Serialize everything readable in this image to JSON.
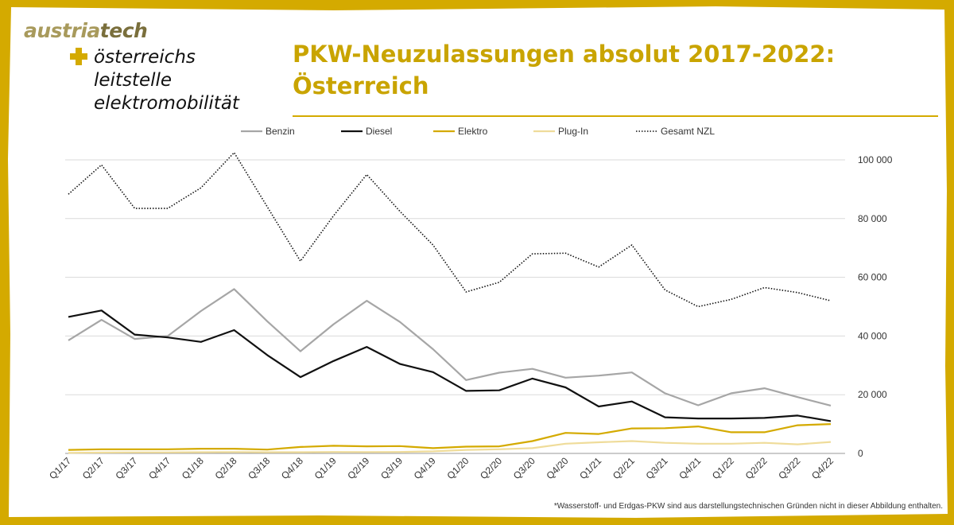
{
  "brand": {
    "name_part1": "austria",
    "name_part2": "tech"
  },
  "tagline": [
    "österreichs",
    "leitstelle",
    "elektromobilität"
  ],
  "header": {
    "title_line1": "PKW-Neuzulassungen absolut 2017-2022:",
    "title_line2": "Österreich"
  },
  "footnote": "*Wasserstoff- und Erdgas-PKW sind aus darstellungstechnischen Gründen nicht in dieser Abbildung enthalten.",
  "colors": {
    "frame": "#d4aa00",
    "accent": "#c9a400"
  },
  "chart_data": {
    "type": "line",
    "title": "PKW-Neuzulassungen absolut 2017-2022: Österreich",
    "categories": [
      "Q1/17",
      "Q2/17",
      "Q3/17",
      "Q4/17",
      "Q1/18",
      "Q2/18",
      "Q3/18",
      "Q4/18",
      "Q1/19",
      "Q2/19",
      "Q3/19",
      "Q4/19",
      "Q1/20",
      "Q2/20",
      "Q3/20",
      "Q4/20",
      "Q1/21",
      "Q2/21",
      "Q3/21",
      "Q4/21",
      "Q1/22",
      "Q2/22",
      "Q3/22",
      "Q4/22"
    ],
    "ylim": [
      0,
      100000
    ],
    "yticks": [
      0,
      20000,
      40000,
      60000,
      80000,
      100000
    ],
    "ytick_labels": [
      "0",
      "20 000",
      "40 000",
      "60 000",
      "80 000",
      "100 000"
    ],
    "y_axis_side": "right",
    "grid": true,
    "legend_position": "top",
    "series": [
      {
        "name": "Benzin",
        "color": "#a6a6a6",
        "dash": "solid",
        "values": [
          38500,
          45500,
          39000,
          40000,
          48500,
          56000,
          45000,
          34800,
          44000,
          52000,
          44800,
          35500,
          25000,
          27500,
          28800,
          25800,
          26500,
          27600,
          20500,
          16400,
          20500,
          22200,
          19200,
          16300
        ]
      },
      {
        "name": "Diesel",
        "color": "#111111",
        "dash": "solid",
        "values": [
          46500,
          48700,
          40500,
          39500,
          38000,
          42000,
          33500,
          26000,
          31500,
          36300,
          30500,
          27700,
          21300,
          21500,
          25500,
          22500,
          16000,
          17700,
          12300,
          11900,
          11900,
          12100,
          12900,
          11000
        ]
      },
      {
        "name": "Elektro",
        "color": "#d4aa00",
        "dash": "solid",
        "values": [
          1200,
          1400,
          1400,
          1400,
          1600,
          1600,
          1300,
          2200,
          2600,
          2400,
          2500,
          1800,
          2300,
          2400,
          4200,
          7000,
          6600,
          8500,
          8600,
          9200,
          7200,
          7200,
          9600,
          10000
        ]
      },
      {
        "name": "Plug-In",
        "color": "#efdc9a",
        "dash": "solid",
        "values": [
          200,
          300,
          350,
          350,
          400,
          450,
          400,
          400,
          500,
          450,
          500,
          700,
          1200,
          1400,
          1800,
          3300,
          3800,
          4200,
          3600,
          3300,
          3300,
          3600,
          3100,
          3900
        ]
      },
      {
        "name": "Gesamt NZL",
        "color": "#111111",
        "dash": "dotted",
        "values": [
          88300,
          98300,
          83500,
          83500,
          90500,
          102500,
          84000,
          65500,
          81000,
          95000,
          82500,
          71000,
          55000,
          58300,
          68000,
          68200,
          63500,
          71000,
          55700,
          50000,
          52500,
          56500,
          54800,
          52000
        ]
      }
    ]
  }
}
